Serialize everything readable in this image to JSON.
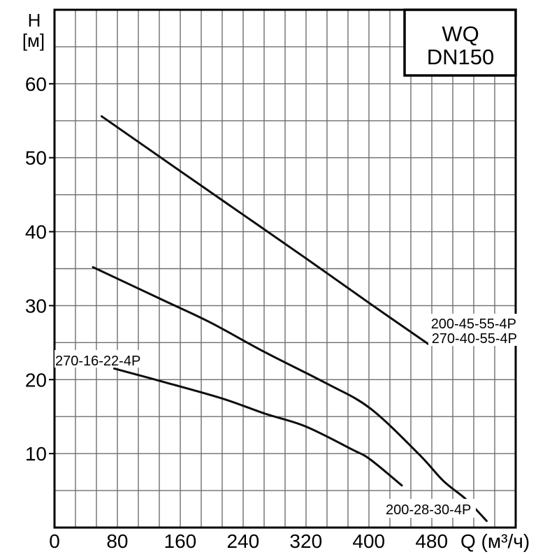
{
  "title_box": {
    "line1": "WQ",
    "line2": "DN150"
  },
  "axes": {
    "y": {
      "title_line1": "H",
      "title_line2": "[м]",
      "ticks": [
        10,
        20,
        30,
        40,
        50,
        60
      ],
      "range": [
        0,
        70
      ]
    },
    "x": {
      "title": "Q (м³/ч)",
      "ticks": [
        0,
        80,
        160,
        240,
        320,
        400,
        480
      ],
      "range": [
        0,
        587
      ]
    }
  },
  "colors": {
    "background": "#ffffff",
    "grid": "#6e6e6e",
    "border": "#000000",
    "curve": "#0d0d0d",
    "text": "#000000"
  },
  "chart_data": {
    "type": "line",
    "title": "WQ DN150",
    "xlabel": "Q (м³/ч)",
    "ylabel": "H [м]",
    "xlim": [
      0,
      587
    ],
    "ylim": [
      0,
      70
    ],
    "grid": true,
    "legend_position": "inline-labels",
    "series": [
      {
        "labels": [
          "200-45-55-4P",
          "270-40-55-4P"
        ],
        "points": [
          [
            60,
            55.6
          ],
          [
            160,
            48.2
          ],
          [
            240,
            42.3
          ],
          [
            320,
            36.4
          ],
          [
            400,
            30.4
          ],
          [
            476,
            24.8
          ]
        ]
      },
      {
        "labels": [
          "200-28-30-4P"
        ],
        "points": [
          [
            49,
            35.2
          ],
          [
            135,
            30.9
          ],
          [
            197,
            27.8
          ],
          [
            268,
            23.7
          ],
          [
            346,
            19.5
          ],
          [
            402,
            16.1
          ],
          [
            464,
            9.9
          ],
          [
            495,
            6.3
          ],
          [
            524,
            3.8
          ],
          [
            550,
            0.9
          ]
        ]
      },
      {
        "labels": [
          "270-16-22-4P"
        ],
        "points": [
          [
            76,
            21.5
          ],
          [
            135,
            19.8
          ],
          [
            212,
            17.5
          ],
          [
            268,
            15.4
          ],
          [
            319,
            13.7
          ],
          [
            378,
            10.6
          ],
          [
            402,
            9.2
          ],
          [
            442,
            5.7
          ]
        ]
      }
    ]
  }
}
